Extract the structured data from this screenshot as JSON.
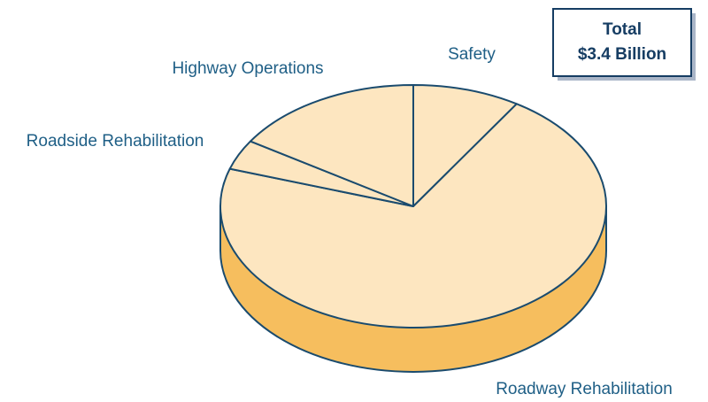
{
  "chart_data": {
    "type": "pie3d",
    "categories": [
      "Safety",
      "Roadway Rehabilitation",
      "Roadside Rehabilitation",
      "Highway Operations"
    ],
    "values": [
      9,
      71,
      4,
      16
    ],
    "color": "#fde6c0",
    "side_color": "#f6be5e",
    "edge_color": "#1a4b6e",
    "annotations": [
      "Total",
      "$3.4 Billion"
    ]
  }
}
